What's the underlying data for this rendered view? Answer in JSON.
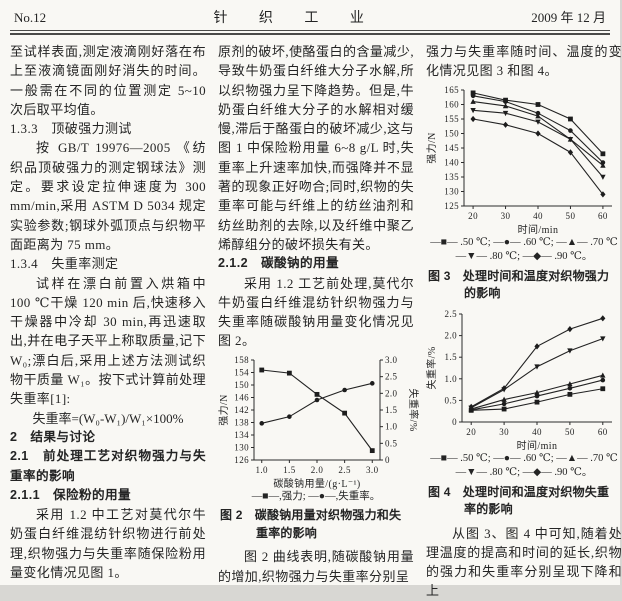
{
  "header": {
    "issue": "No.12",
    "journal": "针 织 工 业",
    "date": "2009 年 12 月"
  },
  "columns": {
    "left": [
      {
        "t": "p",
        "indent": false,
        "v": "至试样表面,测定液滴刚好落在布上至液滴镜面刚好消失的时间。一般需在不同的位置测定 5~10 次后取平均值。"
      },
      {
        "t": "h",
        "bold": false,
        "v": "1.3.3　顶破强力测试"
      },
      {
        "t": "p",
        "indent": true,
        "v": "按 GB/T 19976—2005 《纺织品顶破强力的测定钢球法》测定。要求设定拉伸速度为 300 mm/min,采用 ASTM D 5034 规定实验参数;钢球外弧顶点与织物平面距离为 75 mm。"
      },
      {
        "t": "h",
        "bold": false,
        "v": "1.3.4　失重率测定"
      },
      {
        "t": "p",
        "indent": true,
        "v": "试样在漂白前置入烘箱中 100 ℃干燥 120 min 后,快速移入干燥器中冷却 30 min,再迅速取出,并在电子天平上称取质量,记下 W₀;漂白后,采用上述方法测试织物干质量 W₁。按下式计算前处理失重率[1]:"
      },
      {
        "t": "f",
        "v": "失重率=(W₀-W₁)/W₁×100%"
      },
      {
        "t": "h",
        "bold": true,
        "v": "2　结果与讨论"
      },
      {
        "t": "h",
        "bold": true,
        "v": "2.1　前处理工艺对织物强力与失重率的影响"
      },
      {
        "t": "h",
        "bold": true,
        "v": "2.1.1　保险粉的用量"
      },
      {
        "t": "p",
        "indent": true,
        "v": "采用 1.2 中工艺对莫代尔牛奶蛋白纤维混纺针织物进行前处理,织物强力与失重率随保险粉用量变化情况见图 1。"
      }
    ],
    "mid": [
      {
        "t": "p",
        "indent": false,
        "v": "原剂的破坏,使酪蛋白的含量减少,导致牛奶蛋白纤维大分子水解,所以织物强力呈下降趋势。但是,牛奶蛋白纤维大分子的水解相对缓慢,滞后于酪蛋白的破坏减少,这与图 1 中保险粉用量 6~8 g/L 时,失重率上升速率加快,而强降并不显著的现象正好吻合;同时,织物的失重率可能与纤维上的纺丝油剂和纺丝助剂的去除,以及纤维中聚乙烯醇组分的破坏损失有关。"
      },
      {
        "t": "h",
        "bold": true,
        "v": "2.1.2　碳酸钠的用量"
      },
      {
        "t": "p",
        "indent": true,
        "v": "采用 1.2 工艺前处理,莫代尔牛奶蛋白纤维混纺针织物强力与失重率随碳酸钠用量变化情况见图 2。"
      },
      {
        "t": "chart",
        "ref": 0
      },
      {
        "t": "p",
        "indent": true,
        "v": "图 2 曲线表明,随碳酸钠用量的增加,织物强力与失重率分别呈"
      }
    ],
    "right": [
      {
        "t": "p",
        "indent": false,
        "v": "强力与失重率随时间、温度的变化情况见图 3 和图 4。"
      },
      {
        "t": "chart",
        "ref": 1
      },
      {
        "t": "chart",
        "ref": 2
      },
      {
        "t": "p",
        "indent": true,
        "v": "从图 3、图 4 中可知,随着处理温度的提高和时间的延长,织物的强力和失重率分别呈现下降和上"
      }
    ]
  },
  "chart_data": [
    {
      "name": "figure-2",
      "type": "line",
      "title": "图 2　碳酸钠用量对织物强力和失重率的影响",
      "x": [
        1.0,
        1.5,
        2.0,
        2.5,
        3.0
      ],
      "x_tick_labels": [
        "1.0",
        "1.5",
        "2.0",
        "2.5",
        "3.0"
      ],
      "xlabel": "碳酸钠用量/(g·L⁻¹)",
      "left_axis": {
        "label": "强力/N",
        "min": 126,
        "max": 158,
        "ticks": [
          126,
          130,
          134,
          138,
          142,
          146,
          150,
          154,
          158
        ],
        "tick_labels": [
          "126",
          "130",
          "134",
          "138",
          "142",
          "146",
          "150",
          "154",
          "158"
        ]
      },
      "right_axis": {
        "label": "失重率/%",
        "min": 0,
        "max": 3,
        "ticks": [
          0,
          0.5,
          1,
          1.5,
          2,
          2.5,
          3
        ],
        "tick_labels": [
          "0",
          "0.5",
          "1.0",
          "1.5",
          "2.0",
          "2.5",
          "3.0"
        ]
      },
      "series": [
        {
          "name": "强力",
          "axis": "left",
          "marker": "square",
          "values": [
            154.8,
            153.8,
            147,
            141,
            129
          ]
        },
        {
          "name": "失重率",
          "axis": "right",
          "marker": "circle",
          "values": [
            1.1,
            1.3,
            1.8,
            2.1,
            2.3
          ]
        }
      ],
      "legend_lines": [
        "—■—,强力; —●—,失重率。"
      ],
      "caption": "图 2　碳酸钠用量对织物强力和失重率的影响",
      "w": 196,
      "h": 136,
      "ml": 36
    },
    {
      "name": "figure-3",
      "type": "line",
      "title": "图 3　处理时间和温度对织物强力的影响",
      "x": [
        20,
        30,
        40,
        50,
        60
      ],
      "x_tick_labels": [
        "20",
        "30",
        "40",
        "50",
        "60"
      ],
      "xlabel": "时间/min",
      "left_axis": {
        "label": "强力/N",
        "min": 125,
        "max": 165,
        "ticks": [
          125,
          130,
          135,
          140,
          145,
          150,
          155,
          160,
          165
        ],
        "tick_labels": [
          "125",
          "130",
          "135",
          "140",
          "145",
          "150",
          "155",
          "160",
          "165"
        ]
      },
      "right_axis": null,
      "series": [
        {
          "name": "50 ℃",
          "axis": "left",
          "marker": "square",
          "values": [
            164,
            161.5,
            160,
            155,
            143
          ]
        },
        {
          "name": "60 ℃",
          "axis": "left",
          "marker": "circle",
          "values": [
            163,
            161,
            157,
            151,
            140
          ]
        },
        {
          "name": "70 ℃",
          "axis": "left",
          "marker": "triangle",
          "values": [
            161,
            159.5,
            156,
            148,
            139
          ]
        },
        {
          "name": "80 ℃",
          "axis": "left",
          "marker": "tridown",
          "values": [
            158,
            157,
            154,
            148,
            135
          ]
        },
        {
          "name": "90 ℃",
          "axis": "left",
          "marker": "diamond",
          "values": [
            155,
            153,
            150,
            143.5,
            129
          ]
        }
      ],
      "legend_lines": [
        "—■— .50 ℃; —●— .60 ℃; —▲— .70 ℃",
        "—▼— .80 ℃; —◆— .90 ℃。"
      ],
      "caption": "图 3　处理时间和温度对织物强力的影响",
      "w": 196,
      "h": 152,
      "ml": 38
    },
    {
      "name": "figure-4",
      "type": "line",
      "title": "图 4　处理时间和温度对织物失重率的影响",
      "x": [
        20,
        30,
        40,
        50,
        60
      ],
      "x_tick_labels": [
        "20",
        "30",
        "40",
        "50",
        "60"
      ],
      "xlabel": "时间/min",
      "left_axis": {
        "label": "失重率/%",
        "min": 0,
        "max": 2.5,
        "ticks": [
          0,
          0.5,
          1,
          1.5,
          2,
          2.5
        ],
        "tick_labels": [
          "0",
          "0.5",
          "1.0",
          "1.5",
          "2.0",
          "2.5"
        ]
      },
      "right_axis": null,
      "series": [
        {
          "name": "50 ℃",
          "axis": "left",
          "marker": "square",
          "values": [
            0.27,
            0.3,
            0.46,
            0.64,
            0.77
          ]
        },
        {
          "name": "60 ℃",
          "axis": "left",
          "marker": "circle",
          "values": [
            0.28,
            0.42,
            0.6,
            0.78,
            0.97
          ]
        },
        {
          "name": "70 ℃",
          "axis": "left",
          "marker": "triangle",
          "values": [
            0.3,
            0.52,
            0.68,
            0.88,
            1.08
          ]
        },
        {
          "name": "80 ℃",
          "axis": "left",
          "marker": "tridown",
          "values": [
            0.33,
            0.75,
            1.28,
            1.65,
            1.93
          ]
        },
        {
          "name": "90 ℃",
          "axis": "left",
          "marker": "diamond",
          "values": [
            0.35,
            0.78,
            1.75,
            2.15,
            2.4
          ]
        }
      ],
      "legend_lines": [
        "—■— .50 ℃; —●— .60 ℃; —▲— .70 ℃",
        "—▼— .80 ℃; —◆— .90 ℃。"
      ],
      "caption": "图 4　处理时间和温度对织物失重率的影响",
      "w": 196,
      "h": 144,
      "ml": 36
    }
  ]
}
